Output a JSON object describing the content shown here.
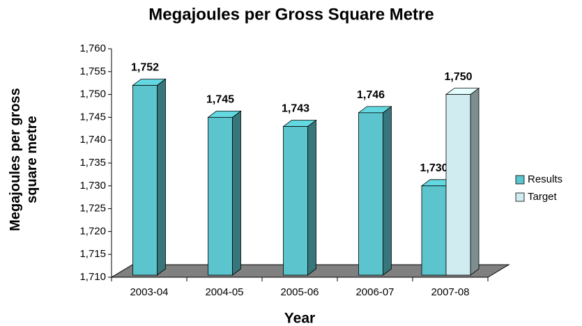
{
  "chart_data": {
    "type": "bar3d",
    "title": "Megajoules per Gross Square Metre",
    "x_label": "Year",
    "y_label": "Megajoules per gross square metre",
    "categories": [
      "2003-04",
      "2004-05",
      "2005-06",
      "2006-07",
      "2007-08"
    ],
    "series": [
      {
        "name": "Results",
        "color": "#5bc4cc",
        "values": [
          1752,
          1745,
          1743,
          1746,
          1730
        ],
        "value_labels": [
          "1,752",
          "1,745",
          "1,743",
          "1,746",
          "1,730"
        ]
      },
      {
        "name": "Target",
        "color": "#d0ecf0",
        "values": [
          null,
          null,
          null,
          null,
          1750
        ],
        "value_labels": [
          null,
          null,
          null,
          null,
          "1,750"
        ]
      }
    ],
    "ylim": [
      1710,
      1760
    ],
    "yticks": [
      {
        "value": 1710,
        "label": "1,710"
      },
      {
        "value": 1715,
        "label": "1,715"
      },
      {
        "value": 1720,
        "label": "1,720"
      },
      {
        "value": 1725,
        "label": "1,725"
      },
      {
        "value": 1730,
        "label": "1,730"
      },
      {
        "value": 1735,
        "label": "1,735"
      },
      {
        "value": 1740,
        "label": "1,740"
      },
      {
        "value": 1745,
        "label": "1,745"
      },
      {
        "value": 1750,
        "label": "1,750"
      },
      {
        "value": 1755,
        "label": "1,755"
      },
      {
        "value": 1760,
        "label": "1,760"
      }
    ],
    "legend": "right"
  }
}
